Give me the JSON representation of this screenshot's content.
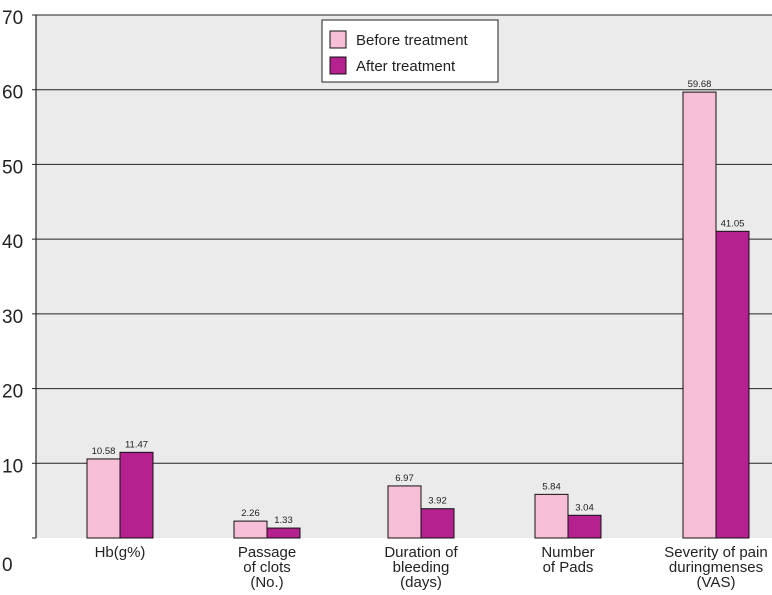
{
  "chart_data": {
    "type": "bar",
    "title": "",
    "xlabel": "",
    "ylabel": "",
    "ylim": [
      0,
      70
    ],
    "yticks": [
      0,
      10,
      20,
      30,
      40,
      50,
      60,
      70
    ],
    "grid": true,
    "legend_position": "top-center",
    "categories": [
      [
        "Hb(g%)"
      ],
      [
        "Passage",
        "of clots",
        "(No.)"
      ],
      [
        "Duration of",
        "bleeding",
        "(days)"
      ],
      [
        "Number",
        "of Pads"
      ],
      [
        "Severity of pain",
        "duringmenses",
        "(VAS)"
      ]
    ],
    "series": [
      {
        "name": "Before treatment",
        "color": "#f6bed7",
        "values": [
          10.58,
          2.26,
          6.97,
          5.84,
          59.68
        ]
      },
      {
        "name": "After treatment",
        "color": "#b5218e",
        "values": [
          11.47,
          1.33,
          3.92,
          3.04,
          41.05
        ]
      }
    ],
    "value_labels": [
      [
        "10.58",
        "2.26",
        "6.97",
        "5.84",
        "59.68"
      ],
      [
        "11.47",
        "1.33",
        "3.92",
        "3.04",
        "41.05"
      ]
    ],
    "plot_background": "#ebebeb"
  }
}
